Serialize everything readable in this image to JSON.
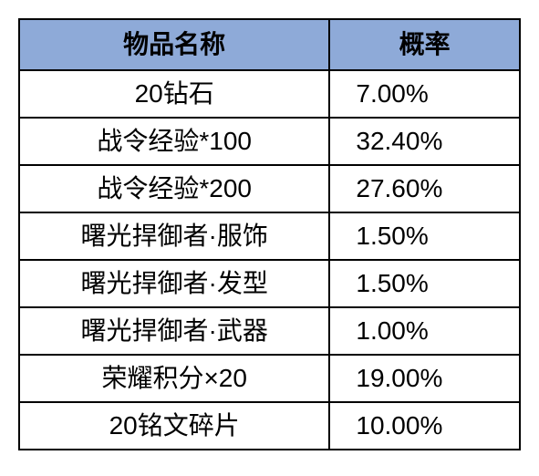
{
  "table": {
    "type": "table",
    "header_bg_color": "#8eaad8",
    "border_color": "#000000",
    "cell_bg_color": "#ffffff",
    "text_color": "#000000",
    "font_size": 28,
    "columns": [
      {
        "label": "物品名称",
        "width_pct": 62,
        "align": "center"
      },
      {
        "label": "概率",
        "width_pct": 38,
        "align": "left"
      }
    ],
    "rows": [
      {
        "name": "20钻石",
        "prob": "7.00%"
      },
      {
        "name": "战令经验*100",
        "prob": "32.40%"
      },
      {
        "name": "战令经验*200",
        "prob": "27.60%"
      },
      {
        "name": "曙光捍御者·服饰",
        "prob": "1.50%"
      },
      {
        "name": "曙光捍御者·发型",
        "prob": "1.50%"
      },
      {
        "name": "曙光捍御者·武器",
        "prob": "1.00%"
      },
      {
        "name": "荣耀积分×20",
        "prob": "19.00%"
      },
      {
        "name": "20铭文碎片",
        "prob": "10.00%"
      }
    ]
  }
}
